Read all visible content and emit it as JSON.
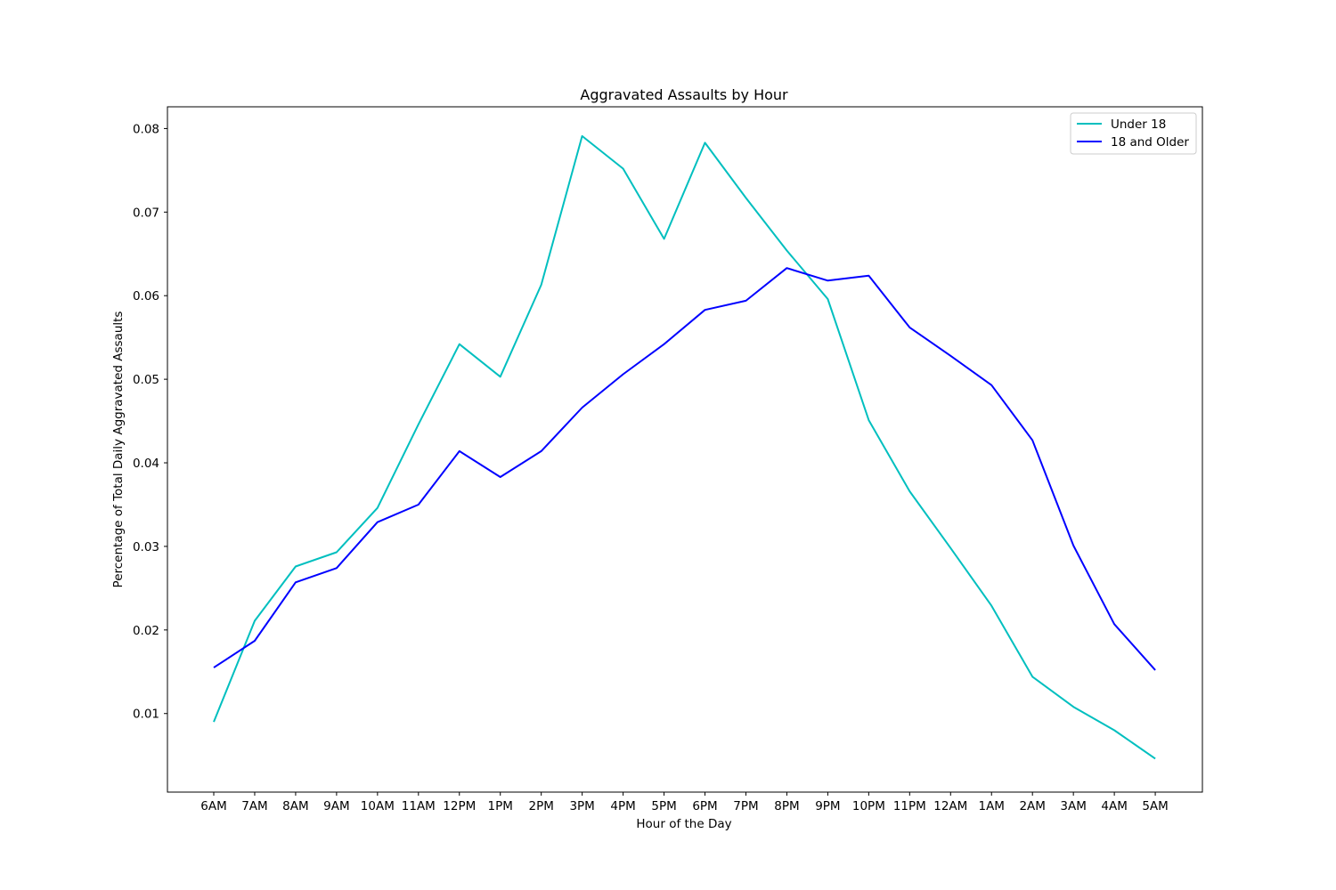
{
  "chart_data": {
    "type": "line",
    "title": "Aggravated Assaults by Hour",
    "xlabel": "Hour of the Day",
    "ylabel": "Percentage of Total Daily Aggravated Assaults",
    "categories": [
      "6AM",
      "7AM",
      "8AM",
      "9AM",
      "10AM",
      "11AM",
      "12PM",
      "1PM",
      "2PM",
      "3PM",
      "4PM",
      "5PM",
      "6PM",
      "7PM",
      "8PM",
      "9PM",
      "10PM",
      "11PM",
      "12AM",
      "1AM",
      "2AM",
      "3AM",
      "4AM",
      "5AM"
    ],
    "yticks": [
      "0.01",
      "0.02",
      "0.03",
      "0.04",
      "0.05",
      "0.06",
      "0.07",
      "0.08"
    ],
    "ylim": [
      0.0006,
      0.0826
    ],
    "grid": false,
    "legend_position": "top-right",
    "series": [
      {
        "name": "Under 18",
        "color": "#00bfbf",
        "values": [
          0.009,
          0.0211,
          0.0276,
          0.0293,
          0.0346,
          0.0446,
          0.0542,
          0.0503,
          0.0613,
          0.0791,
          0.0752,
          0.0668,
          0.0783,
          0.0717,
          0.0654,
          0.0596,
          0.0451,
          0.0366,
          0.0298,
          0.0229,
          0.0144,
          0.0108,
          0.008,
          0.0046
        ]
      },
      {
        "name": "18 and Older",
        "color": "#0000ff",
        "values": [
          0.0155,
          0.0187,
          0.0257,
          0.0274,
          0.0329,
          0.035,
          0.0414,
          0.0383,
          0.0414,
          0.0466,
          0.0506,
          0.0542,
          0.0583,
          0.0594,
          0.0633,
          0.0618,
          0.0624,
          0.0562,
          0.0528,
          0.0493,
          0.0427,
          0.0301,
          0.0207,
          0.0152
        ]
      }
    ]
  }
}
